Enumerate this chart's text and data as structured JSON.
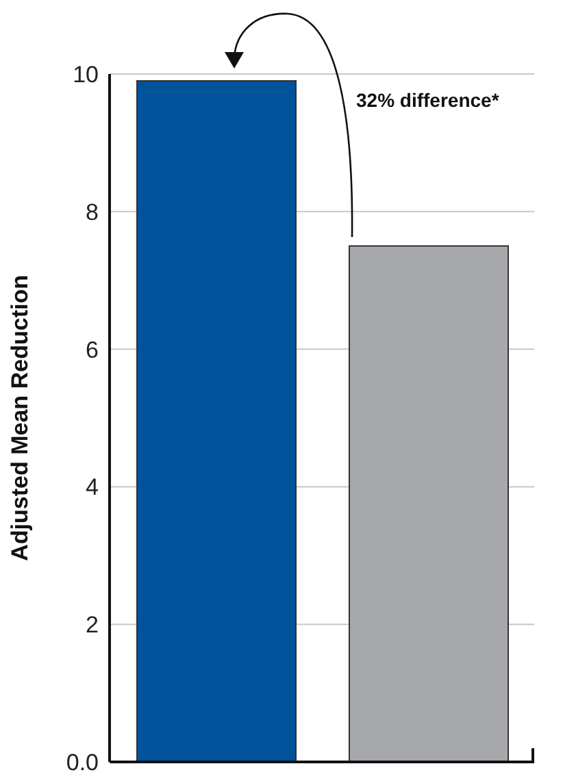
{
  "chart_data": {
    "type": "bar",
    "ylabel": "Adjusted Mean Reduction",
    "categories": [
      null,
      null
    ],
    "values": [
      9.9,
      7.5
    ],
    "colors": [
      "#00529b",
      "#a7a8ab"
    ],
    "ylim": [
      0,
      10
    ],
    "yticks": [
      {
        "value": 0,
        "label": "0.0"
      },
      2,
      4,
      6,
      8,
      10
    ],
    "grid": "y",
    "tick_labels": "y",
    "annotations": [
      "32% difference*"
    ]
  }
}
